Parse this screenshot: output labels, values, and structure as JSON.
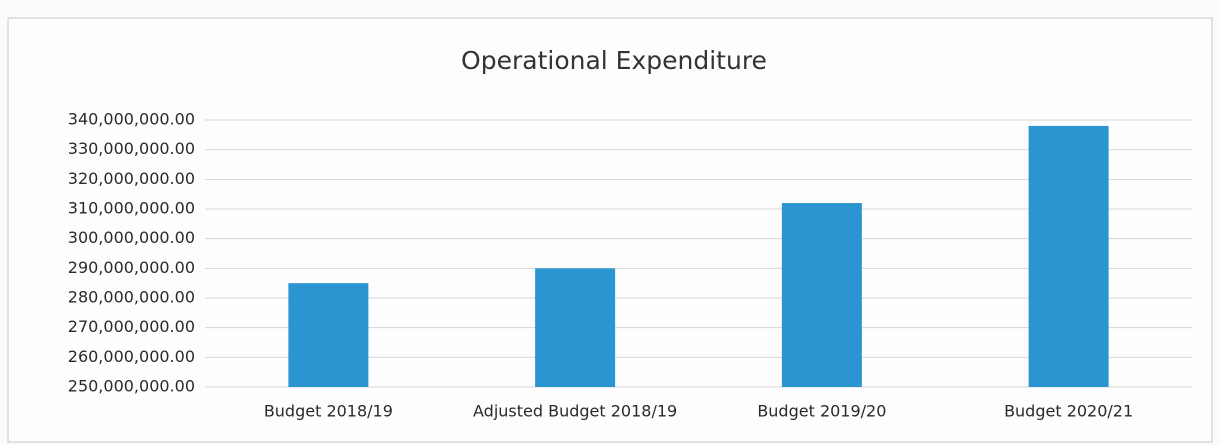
{
  "chart_data": {
    "type": "bar",
    "title": "Operational Expenditure",
    "categories": [
      "Budget 2018/19",
      "Adjusted Budget 2018/19",
      "Budget 2019/20",
      "Budget 2020/21"
    ],
    "values": [
      285000000,
      290000000,
      312000000,
      338000000
    ],
    "color": "#2b95d2",
    "ylim": [
      250000000,
      340000000
    ],
    "yticks": [
      {
        "value": 250000000,
        "label": "250,000,000.00"
      },
      {
        "value": 260000000,
        "label": "260,000,000.00"
      },
      {
        "value": 270000000,
        "label": "270,000,000.00"
      },
      {
        "value": 280000000,
        "label": "280,000,000.00"
      },
      {
        "value": 290000000,
        "label": "290,000,000.00"
      },
      {
        "value": 300000000,
        "label": "300,000,000.00"
      },
      {
        "value": 310000000,
        "label": "310,000,000.00"
      },
      {
        "value": 320000000,
        "label": "320,000,000.00"
      },
      {
        "value": 330000000,
        "label": "330,000,000.00"
      },
      {
        "value": 340000000,
        "label": "340,000,000.00"
      }
    ],
    "grid": true
  }
}
